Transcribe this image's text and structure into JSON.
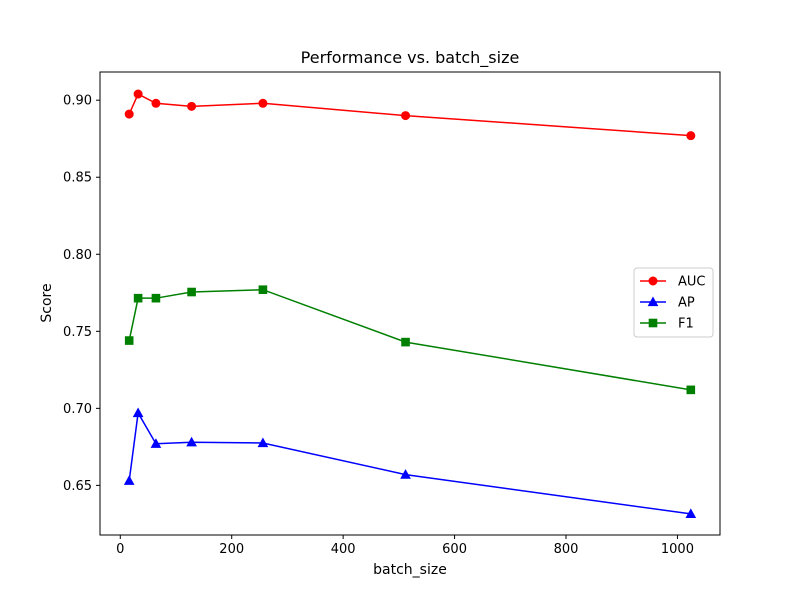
{
  "chart_data": {
    "type": "line",
    "title": "Performance vs. batch_size",
    "xlabel": "batch_size",
    "ylabel": "Score",
    "xlim": [
      -36.4,
      1076.4
    ],
    "ylim": [
      0.6178,
      0.9183
    ],
    "xticks": [
      0,
      200,
      400,
      600,
      800,
      1000
    ],
    "xtick_labels": [
      "0",
      "200",
      "400",
      "600",
      "800",
      "1000"
    ],
    "yticks": [
      0.65,
      0.7,
      0.75,
      0.8,
      0.85,
      0.9
    ],
    "ytick_labels": [
      "0.65",
      "0.70",
      "0.75",
      "0.80",
      "0.85",
      "0.90"
    ],
    "grid": false,
    "legend_position": "center-right",
    "x": [
      16,
      32,
      64,
      128,
      256,
      512,
      1024
    ],
    "series": [
      {
        "name": "AUC",
        "color": "#ff0000",
        "marker": "circle",
        "values": [
          0.891,
          0.904,
          0.898,
          0.896,
          0.898,
          0.89,
          0.877
        ]
      },
      {
        "name": "AP",
        "color": "#0000ff",
        "marker": "triangle",
        "values": [
          0.653,
          0.697,
          0.677,
          0.678,
          0.6775,
          0.657,
          0.6315
        ]
      },
      {
        "name": "F1",
        "color": "#008000",
        "marker": "square",
        "values": [
          0.744,
          0.7715,
          0.7715,
          0.7755,
          0.777,
          0.743,
          0.712
        ]
      }
    ]
  }
}
